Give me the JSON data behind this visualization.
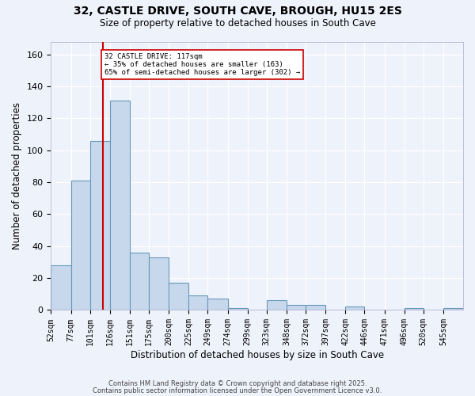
{
  "title1": "32, CASTLE DRIVE, SOUTH CAVE, BROUGH, HU15 2ES",
  "title2": "Size of property relative to detached houses in South Cave",
  "xlabel": "Distribution of detached houses by size in South Cave",
  "ylabel": "Number of detached properties",
  "bar_color": "#c8d8ec",
  "bar_edge_color": "#6699bb",
  "background_color": "#eef2fb",
  "grid_color": "#ffffff",
  "categories": [
    "52sqm",
    "77sqm",
    "101sqm",
    "126sqm",
    "151sqm",
    "175sqm",
    "200sqm",
    "225sqm",
    "249sqm",
    "274sqm",
    "299sqm",
    "323sqm",
    "348sqm",
    "372sqm",
    "397sqm",
    "422sqm",
    "446sqm",
    "471sqm",
    "496sqm",
    "520sqm",
    "545sqm"
  ],
  "values": [
    28,
    81,
    106,
    131,
    36,
    33,
    17,
    9,
    7,
    1,
    0,
    6,
    3,
    3,
    0,
    2,
    0,
    0,
    1,
    0,
    1
  ],
  "bin_edges": [
    52,
    77,
    101,
    126,
    151,
    175,
    200,
    225,
    249,
    274,
    299,
    323,
    348,
    372,
    397,
    422,
    446,
    471,
    496,
    520,
    545,
    570
  ],
  "property_size": 117,
  "vline_color": "#cc0000",
  "annotation_line1": "32 CASTLE DRIVE: 117sqm",
  "annotation_line2": "← 35% of detached houses are smaller (163)",
  "annotation_line3": "65% of semi-detached houses are larger (302) →",
  "annotation_box_color": "#ffffff",
  "annotation_box_edge": "#cc0000",
  "ylim": [
    0,
    168
  ],
  "yticks": [
    0,
    20,
    40,
    60,
    80,
    100,
    120,
    140,
    160
  ],
  "footer1": "Contains HM Land Registry data © Crown copyright and database right 2025.",
  "footer2": "Contains public sector information licensed under the Open Government Licence v3.0."
}
